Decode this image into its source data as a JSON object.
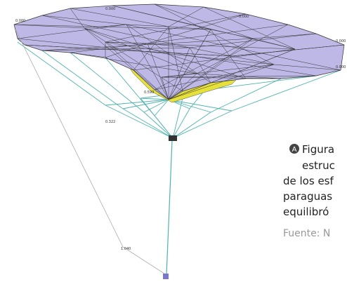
{
  "figure": {
    "labels": [
      "0.000",
      "0.000",
      "0.000",
      "0.000",
      "0.000",
      "0.599",
      "0.322",
      "1.040"
    ]
  },
  "caption": {
    "marker": "A",
    "lines": [
      "Figura",
      "estruc",
      "de los esf",
      "paraguas",
      "equilibró"
    ],
    "source": "Fuente: N"
  }
}
